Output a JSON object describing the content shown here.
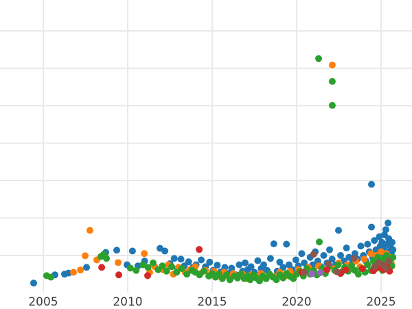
{
  "chart_data": {
    "type": "scatter",
    "title": "",
    "xlabel": "",
    "ylabel": "",
    "grid": true,
    "legend": "none",
    "background_color": "#ffffff",
    "gridline_color": "#e9e9e9",
    "tick_label_color": "#3d3d3d",
    "marker_radius_px": 5,
    "x_axis": {
      "ticks": [
        2005,
        2010,
        2015,
        2020,
        2025
      ],
      "tick_labels": [
        "2005",
        "2010",
        "2015",
        "2020",
        "2025"
      ],
      "range": [
        2002.4,
        2026.8
      ]
    },
    "y_axis": {
      "tick_labels": [],
      "gridline_values": [
        1,
        2,
        3,
        4,
        5,
        6,
        7
      ],
      "range": [
        0,
        7.8
      ]
    },
    "series": [
      {
        "name": "blue",
        "color": "#1f77b4",
        "points": [
          [
            2004.43,
            0.26
          ],
          [
            2005.69,
            0.48
          ],
          [
            2006.26,
            0.5
          ],
          [
            2006.5,
            0.53
          ],
          [
            2007.56,
            0.68
          ],
          [
            2008.7,
            1.08
          ],
          [
            2009.35,
            1.14
          ],
          [
            2009.96,
            0.75
          ],
          [
            2010.28,
            1.12
          ],
          [
            2010.6,
            0.72
          ],
          [
            2011.0,
            0.85
          ],
          [
            2011.91,
            1.19
          ],
          [
            2012.2,
            1.12
          ],
          [
            2012.5,
            0.78
          ],
          [
            2012.75,
            0.92
          ],
          [
            2012.95,
            0.65
          ],
          [
            2013.15,
            0.9
          ],
          [
            2013.35,
            0.72
          ],
          [
            2013.6,
            0.83
          ],
          [
            2013.85,
            0.68
          ],
          [
            2014.05,
            0.75
          ],
          [
            2014.35,
            0.88
          ],
          [
            2014.6,
            0.7
          ],
          [
            2014.85,
            0.82
          ],
          [
            2015.05,
            0.6
          ],
          [
            2015.3,
            0.74
          ],
          [
            2015.5,
            0.56
          ],
          [
            2015.75,
            0.68
          ],
          [
            2015.95,
            0.52
          ],
          [
            2016.15,
            0.66
          ],
          [
            2016.4,
            0.48
          ],
          [
            2016.6,
            0.75
          ],
          [
            2016.8,
            0.58
          ],
          [
            2016.95,
            0.8
          ],
          [
            2017.1,
            0.62
          ],
          [
            2017.3,
            0.7
          ],
          [
            2017.5,
            0.55
          ],
          [
            2017.7,
            0.86
          ],
          [
            2017.9,
            0.65
          ],
          [
            2018.05,
            0.75
          ],
          [
            2018.25,
            0.6
          ],
          [
            2018.45,
            0.92
          ],
          [
            2018.65,
            1.31
          ],
          [
            2018.85,
            0.58
          ],
          [
            2019.0,
            0.82
          ],
          [
            2019.2,
            0.68
          ],
          [
            2019.4,
            1.3
          ],
          [
            2019.55,
            0.75
          ],
          [
            2019.75,
            0.62
          ],
          [
            2019.95,
            0.88
          ],
          [
            2020.1,
            0.72
          ],
          [
            2020.3,
            1.05
          ],
          [
            2020.45,
            0.8
          ],
          [
            2020.6,
            0.65
          ],
          [
            2020.8,
            0.95
          ],
          [
            2020.95,
            0.75
          ],
          [
            2021.1,
            1.1
          ],
          [
            2021.25,
            0.85
          ],
          [
            2021.45,
            0.7
          ],
          [
            2021.6,
            1.0
          ],
          [
            2021.8,
            0.8
          ],
          [
            2021.95,
            1.15
          ],
          [
            2022.1,
            0.9
          ],
          [
            2022.3,
            0.75
          ],
          [
            2022.48,
            1.67
          ],
          [
            2022.6,
            1.0
          ],
          [
            2022.8,
            0.85
          ],
          [
            2022.95,
            1.2
          ],
          [
            2023.1,
            0.95
          ],
          [
            2023.3,
            0.8
          ],
          [
            2023.45,
            1.05
          ],
          [
            2023.6,
            0.9
          ],
          [
            2023.8,
            1.25
          ],
          [
            2023.95,
            1.0
          ],
          [
            2024.1,
            0.85
          ],
          [
            2024.2,
            1.3
          ],
          [
            2024.3,
            1.1
          ],
          [
            2024.43,
            2.9
          ],
          [
            2024.43,
            1.76
          ],
          [
            2024.5,
            0.95
          ],
          [
            2024.6,
            1.4
          ],
          [
            2024.7,
            1.15
          ],
          [
            2024.8,
            0.9
          ],
          [
            2024.9,
            1.5
          ],
          [
            2024.95,
            1.25
          ],
          [
            2025.0,
            1.05
          ],
          [
            2025.05,
            1.35
          ],
          [
            2025.1,
            0.9
          ],
          [
            2025.15,
            1.2
          ],
          [
            2025.2,
            1.55
          ],
          [
            2025.25,
            1.0
          ],
          [
            2025.28,
            1.69
          ],
          [
            2025.32,
            1.3
          ],
          [
            2025.36,
            1.1
          ],
          [
            2025.41,
            1.87
          ],
          [
            2025.45,
            1.45
          ],
          [
            2025.5,
            0.95
          ],
          [
            2025.55,
            1.25
          ],
          [
            2025.6,
            1.05
          ],
          [
            2025.65,
            1.35
          ],
          [
            2025.7,
            1.15
          ]
        ]
      },
      {
        "name": "orange",
        "color": "#ff7f0e",
        "points": [
          [
            2006.79,
            0.55
          ],
          [
            2007.2,
            0.61
          ],
          [
            2007.48,
            0.99
          ],
          [
            2007.76,
            1.67
          ],
          [
            2008.17,
            0.88
          ],
          [
            2009.43,
            0.81
          ],
          [
            2010.98,
            1.05
          ],
          [
            2011.3,
            0.55
          ],
          [
            2011.6,
            0.7
          ],
          [
            2012.1,
            0.62
          ],
          [
            2012.4,
            0.75
          ],
          [
            2012.7,
            0.5
          ],
          [
            2013.0,
            0.68
          ],
          [
            2013.4,
            0.55
          ],
          [
            2013.7,
            0.62
          ],
          [
            2014.0,
            0.7
          ],
          [
            2014.3,
            0.52
          ],
          [
            2014.6,
            0.6
          ],
          [
            2014.9,
            0.48
          ],
          [
            2015.1,
            0.58
          ],
          [
            2015.4,
            0.45
          ],
          [
            2015.7,
            0.55
          ],
          [
            2016.0,
            0.42
          ],
          [
            2016.25,
            0.52
          ],
          [
            2016.5,
            0.4
          ],
          [
            2016.8,
            0.5
          ],
          [
            2017.05,
            0.38
          ],
          [
            2017.3,
            0.48
          ],
          [
            2017.6,
            0.42
          ],
          [
            2017.9,
            0.52
          ],
          [
            2018.1,
            0.4
          ],
          [
            2018.4,
            0.5
          ],
          [
            2018.7,
            0.44
          ],
          [
            2019.0,
            0.55
          ],
          [
            2019.3,
            0.45
          ],
          [
            2019.6,
            0.58
          ],
          [
            2019.9,
            0.48
          ],
          [
            2020.1,
            0.62
          ],
          [
            2020.4,
            0.52
          ],
          [
            2020.7,
            0.68
          ],
          [
            2021.0,
            0.55
          ],
          [
            2021.3,
            0.72
          ],
          [
            2021.6,
            0.6
          ],
          [
            2021.9,
            0.75
          ],
          [
            2022.11,
            6.09
          ],
          [
            2022.25,
            0.65
          ],
          [
            2022.5,
            0.8
          ],
          [
            2022.75,
            0.6
          ],
          [
            2023.0,
            0.75
          ],
          [
            2023.25,
            0.65
          ],
          [
            2023.5,
            0.85
          ],
          [
            2023.75,
            0.7
          ],
          [
            2024.0,
            0.9
          ],
          [
            2024.2,
            0.75
          ],
          [
            2024.4,
            1.05
          ],
          [
            2024.55,
            0.85
          ],
          [
            2024.7,
            1.0
          ],
          [
            2024.85,
            0.8
          ],
          [
            2025.0,
            1.1
          ],
          [
            2025.1,
            0.9
          ],
          [
            2025.2,
            0.75
          ],
          [
            2025.3,
            1.05
          ],
          [
            2025.4,
            0.85
          ],
          [
            2025.5,
            0.95
          ],
          [
            2025.6,
            0.8
          ]
        ]
      },
      {
        "name": "green",
        "color": "#2ca02c",
        "points": [
          [
            2005.2,
            0.46
          ],
          [
            2005.45,
            0.42
          ],
          [
            2008.41,
            0.97
          ],
          [
            2008.58,
            1.03
          ],
          [
            2008.74,
            0.92
          ],
          [
            2010.16,
            0.66
          ],
          [
            2010.5,
            0.6
          ],
          [
            2010.9,
            0.75
          ],
          [
            2011.2,
            0.68
          ],
          [
            2011.5,
            0.8
          ],
          [
            2011.8,
            0.62
          ],
          [
            2012.05,
            0.72
          ],
          [
            2012.3,
            0.58
          ],
          [
            2012.6,
            0.7
          ],
          [
            2012.9,
            0.55
          ],
          [
            2013.2,
            0.65
          ],
          [
            2013.5,
            0.5
          ],
          [
            2013.8,
            0.6
          ],
          [
            2014.0,
            0.55
          ],
          [
            2014.25,
            0.48
          ],
          [
            2014.5,
            0.58
          ],
          [
            2014.8,
            0.45
          ],
          [
            2015.0,
            0.52
          ],
          [
            2015.2,
            0.42
          ],
          [
            2015.4,
            0.5
          ],
          [
            2015.6,
            0.38
          ],
          [
            2015.85,
            0.48
          ],
          [
            2016.05,
            0.35
          ],
          [
            2016.3,
            0.45
          ],
          [
            2016.5,
            0.4
          ],
          [
            2016.7,
            0.5
          ],
          [
            2016.9,
            0.38
          ],
          [
            2017.1,
            0.45
          ],
          [
            2017.25,
            0.35
          ],
          [
            2017.45,
            0.48
          ],
          [
            2017.6,
            0.4
          ],
          [
            2017.8,
            0.32
          ],
          [
            2018.0,
            0.45
          ],
          [
            2018.2,
            0.38
          ],
          [
            2018.4,
            0.5
          ],
          [
            2018.6,
            0.42
          ],
          [
            2018.8,
            0.35
          ],
          [
            2019.0,
            0.48
          ],
          [
            2019.2,
            0.4
          ],
          [
            2019.4,
            0.52
          ],
          [
            2019.6,
            0.44
          ],
          [
            2019.8,
            0.38
          ],
          [
            2020.0,
            0.5
          ],
          [
            2020.2,
            0.58
          ],
          [
            2020.4,
            0.45
          ],
          [
            2020.6,
            0.65
          ],
          [
            2020.8,
            0.5
          ],
          [
            2021.0,
            0.6
          ],
          [
            2021.2,
            0.48
          ],
          [
            2021.3,
            6.26
          ],
          [
            2021.34,
            1.36
          ],
          [
            2021.5,
            0.65
          ],
          [
            2021.7,
            0.52
          ],
          [
            2021.9,
            0.7
          ],
          [
            2022.11,
            5.65
          ],
          [
            2022.11,
            5.01
          ],
          [
            2022.25,
            0.6
          ],
          [
            2022.45,
            0.75
          ],
          [
            2022.65,
            0.55
          ],
          [
            2022.85,
            0.68
          ],
          [
            2023.05,
            0.58
          ],
          [
            2023.25,
            0.72
          ],
          [
            2023.45,
            0.6
          ],
          [
            2023.65,
            0.5
          ],
          [
            2023.85,
            0.65
          ],
          [
            2024.05,
            0.55
          ],
          [
            2024.2,
            0.75
          ],
          [
            2024.4,
            0.6
          ],
          [
            2024.55,
            0.85
          ],
          [
            2024.7,
            0.65
          ],
          [
            2024.8,
            0.95
          ],
          [
            2024.9,
            0.7
          ],
          [
            2025.0,
            0.85
          ],
          [
            2025.08,
            0.6
          ],
          [
            2025.16,
            0.9
          ],
          [
            2025.24,
            0.75
          ],
          [
            2025.32,
            1.0
          ],
          [
            2025.4,
            0.8
          ],
          [
            2025.48,
            0.65
          ],
          [
            2025.56,
            0.9
          ],
          [
            2025.64,
            0.72
          ],
          [
            2025.7,
            0.95
          ]
        ]
      },
      {
        "name": "red",
        "color": "#d62728",
        "points": [
          [
            2008.46,
            0.68
          ],
          [
            2009.47,
            0.48
          ],
          [
            2011.18,
            0.46
          ],
          [
            2014.23,
            1.16
          ],
          [
            2020.3,
            0.55
          ],
          [
            2021.8,
            0.62
          ],
          [
            2022.6,
            0.52
          ],
          [
            2022.9,
            0.61
          ],
          [
            2023.9,
            0.65
          ],
          [
            2024.55,
            0.59
          ],
          [
            2024.9,
            0.68
          ],
          [
            2025.15,
            0.62
          ],
          [
            2025.35,
            0.7
          ],
          [
            2025.5,
            0.58
          ]
        ]
      },
      {
        "name": "purple",
        "color": "#9467bd",
        "points": [
          [
            2020.9,
            0.51
          ],
          [
            2021.4,
            0.54
          ]
        ]
      },
      {
        "name": "brown",
        "color": "#8c564b",
        "points": [
          [
            2020.45,
            0.55
          ],
          [
            2021.0,
            1.03
          ],
          [
            2021.87,
            0.77
          ],
          [
            2022.4,
            0.56
          ],
          [
            2023.4,
            0.92
          ],
          [
            2024.6,
            0.7
          ],
          [
            2024.85,
            0.8
          ],
          [
            2025.1,
            0.75
          ],
          [
            2025.3,
            0.66
          ],
          [
            2025.45,
            0.85
          ]
        ]
      }
    ]
  }
}
